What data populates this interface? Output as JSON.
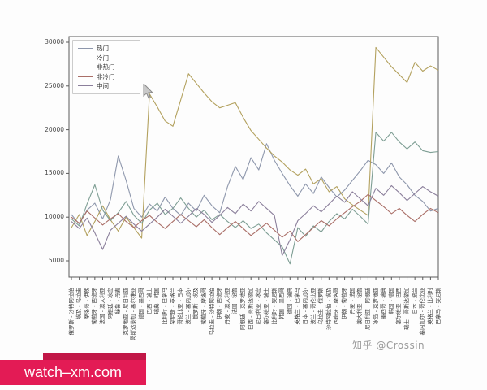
{
  "watermark": {
    "text": "知乎 @Crossin"
  },
  "banner": {
    "text": "watch–xm.com",
    "bg": "#e31b55",
    "strip_bg": "#c11747"
  },
  "chart_data": {
    "type": "line",
    "title": "",
    "xlabel": "",
    "ylabel": "",
    "ylim": [
      3100,
      30800
    ],
    "yticks": [
      5000,
      10000,
      15000,
      20000,
      25000,
      30000
    ],
    "grid": false,
    "legend_position": "upper left",
    "categories": [
      "俄罗斯 - 沙特阿拉伯",
      "埃及 - 乌拉圭",
      "摩洛哥 - 伊朗",
      "葡萄牙 - 西班牙",
      "法国 - 澳大利亚",
      "阿根廷 - 冰岛",
      "秘鲁 - 丹麦",
      "克罗地亚 - 尼日利亚",
      "哥斯达黎加 - 塞尔维亚",
      "德国 - 墨西哥",
      "巴西 - 瑞士",
      "瑞典 - 韩国",
      "比利时 - 巴拿马",
      "突尼斯 - 英格兰",
      "哥伦比亚 - 日本",
      "波兰 - 塞内加尔",
      "俄罗斯 - 埃及",
      "葡萄牙 - 摩洛哥",
      "乌拉圭 - 沙特阿拉伯",
      "伊朗 - 西班牙",
      "丹麦 - 澳大利亚",
      "法国 - 秘鲁",
      "阿根廷 - 克罗地亚",
      "巴西 - 哥斯达黎加",
      "尼日利亚 - 冰岛",
      "塞尔维亚 - 瑞士",
      "比利时 - 突尼斯",
      "韩国 - 墨西哥",
      "德国 - 瑞典",
      "英格兰 - 巴拿马",
      "日本 - 塞内加尔",
      "波兰 - 哥伦比亚",
      "乌拉圭 - 俄罗斯",
      "沙特阿拉伯 - 埃及",
      "西班牙 - 摩洛哥",
      "伊朗 - 葡萄牙",
      "丹麦 - 法国",
      "澳大利亚 - 秘鲁",
      "尼日利亚 - 阿根廷",
      "冰岛 - 克罗地亚",
      "墨西哥 - 瑞典",
      "韩国 - 德国",
      "塞尔维亚 - 巴西",
      "瑞士 - 哥斯达黎加",
      "日本 - 波兰",
      "塞内加尔 - 哥伦比亚",
      "英格兰 - 比利时",
      "巴拿马 - 突尼斯"
    ],
    "series": [
      {
        "key": "hot",
        "name": "热门",
        "color": "#8e97ac",
        "values": [
          10300,
          9200,
          10800,
          11600,
          9800,
          12000,
          17000,
          14200,
          11000,
          10000,
          11500,
          10700,
          12300,
          11000,
          10200,
          11600,
          10700,
          12500,
          11300,
          10500,
          13500,
          15800,
          14300,
          16800,
          15400,
          18400,
          16500,
          15000,
          13600,
          12400,
          13800,
          12700,
          14600,
          13400,
          12300,
          13100,
          14200,
          15300,
          16500,
          16000,
          15000,
          16200,
          14600,
          13700,
          12500,
          11800,
          10700,
          11000
        ]
      },
      {
        "key": "cold",
        "name": "冷门",
        "color": "#b3a15e",
        "values": [
          8800,
          10300,
          7900,
          9500,
          11300,
          9700,
          8400,
          10000,
          8800,
          7600,
          24100,
          22600,
          21000,
          20400,
          23400,
          26400,
          25300,
          24200,
          23200,
          22500,
          22800,
          23100,
          21400,
          19900,
          18900,
          17900,
          17000,
          16300,
          15400,
          14800,
          15500,
          13800,
          14400,
          12900,
          13500,
          12100,
          11400,
          10800,
          10200,
          29400,
          28300,
          27200,
          26300,
          25400,
          27700,
          26700,
          27300,
          26800
        ]
      },
      {
        "key": "not-hot",
        "name": "非热门",
        "color": "#7e9e94",
        "values": [
          9800,
          9000,
          11500,
          13700,
          10800,
          9600,
          10500,
          11800,
          10200,
          9300,
          10800,
          11600,
          10300,
          11000,
          12200,
          11000,
          10000,
          10800,
          9700,
          10300,
          9500,
          8800,
          9600,
          8700,
          9200,
          8200,
          7400,
          6600,
          4650,
          8800,
          7800,
          9000,
          8300,
          9500,
          10400,
          9800,
          10900,
          10100,
          9200,
          19700,
          18700,
          19700,
          18600,
          17800,
          18600,
          17600,
          17400,
          17500
        ]
      },
      {
        "key": "not-cold",
        "name": "非冷门",
        "color": "#aa6f68",
        "values": [
          10000,
          9300,
          10700,
          9900,
          9100,
          9800,
          10400,
          9500,
          8800,
          9600,
          10200,
          9400,
          8700,
          9500,
          10300,
          9600,
          8900,
          9700,
          8800,
          8000,
          8800,
          9500,
          8700,
          7900,
          8600,
          9300,
          8500,
          7700,
          8400,
          7200,
          8000,
          8800,
          9600,
          9000,
          9800,
          10500,
          11200,
          11800,
          12600,
          11900,
          11200,
          10400,
          11000,
          10200,
          9500,
          10300,
          11000,
          10500
        ]
      },
      {
        "key": "middle",
        "name": "中间",
        "color": "#8b7f9b",
        "values": [
          9500,
          8700,
          9900,
          8200,
          6300,
          8500,
          9300,
          10100,
          9200,
          8400,
          9200,
          10000,
          10900,
          10100,
          9300,
          10100,
          11000,
          10300,
          9400,
          10200,
          11100,
          10400,
          11500,
          10700,
          11800,
          11000,
          10200,
          5600,
          7400,
          9600,
          10400,
          11300,
          10600,
          11500,
          12400,
          11700,
          12900,
          12100,
          11300,
          13300,
          12500,
          13600,
          12800,
          11900,
          12700,
          13500,
          12900,
          12400
        ]
      }
    ]
  }
}
